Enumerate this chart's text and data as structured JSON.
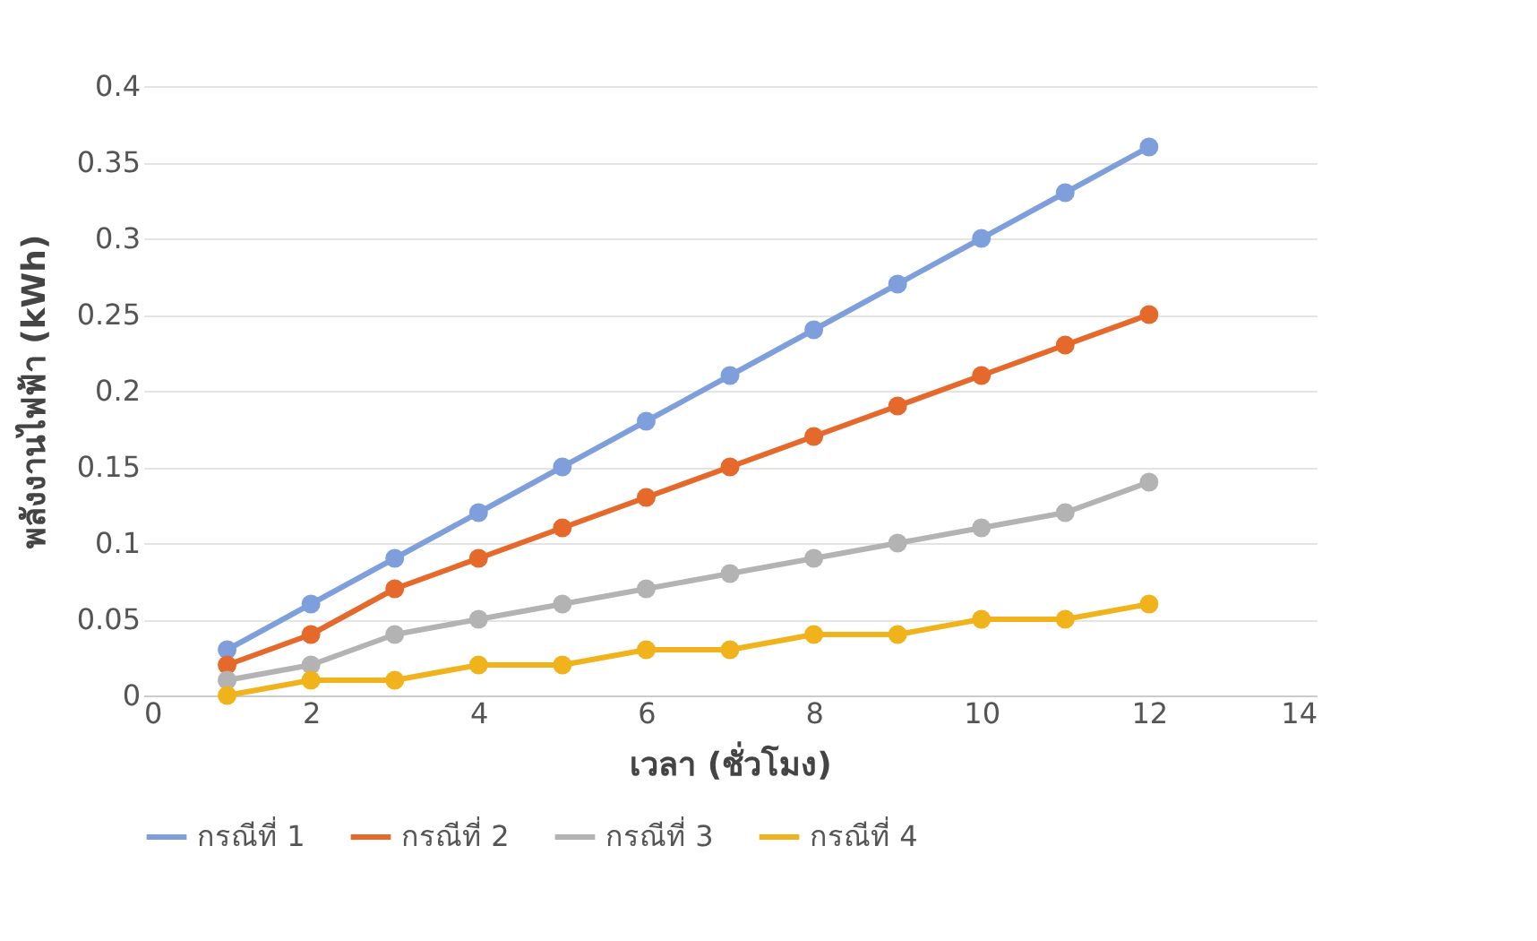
{
  "chart_data": {
    "type": "line",
    "xlabel": "เวลา (ชั่วโมง)",
    "ylabel": "พลังงานไฟฟ้า (kWh)",
    "x": [
      1,
      2,
      3,
      4,
      5,
      6,
      7,
      8,
      9,
      10,
      11,
      12
    ],
    "series": [
      {
        "name": "กรณีที่ 1",
        "color": "#7f9fdc",
        "values": [
          0.03,
          0.06,
          0.09,
          0.12,
          0.15,
          0.18,
          0.21,
          0.24,
          0.27,
          0.3,
          0.33,
          0.36
        ]
      },
      {
        "name": "กรณีที่ 2",
        "color": "#e4692a",
        "values": [
          0.02,
          0.04,
          0.07,
          0.09,
          0.11,
          0.13,
          0.15,
          0.17,
          0.19,
          0.21,
          0.23,
          0.25
        ]
      },
      {
        "name": "กรณีที่ 3",
        "color": "#b3b3b3",
        "values": [
          0.01,
          0.02,
          0.04,
          0.05,
          0.06,
          0.07,
          0.08,
          0.09,
          0.1,
          0.11,
          0.12,
          0.14
        ]
      },
      {
        "name": "กรณีที่ 4",
        "color": "#f1b31c",
        "values": [
          0,
          0.01,
          0.01,
          0.02,
          0.02,
          0.03,
          0.03,
          0.04,
          0.04,
          0.05,
          0.05,
          0.06
        ]
      }
    ],
    "xlim": [
      0,
      14
    ],
    "xticks": [
      0,
      2,
      4,
      6,
      8,
      10,
      12,
      14
    ],
    "ylim": [
      0,
      0.4
    ],
    "yticks": [
      0,
      0.05,
      0.1,
      0.15,
      0.2,
      0.25,
      0.3,
      0.35,
      0.4
    ],
    "grid": "y",
    "legend": "bottom",
    "marker": "circle",
    "line_style": "solid"
  }
}
